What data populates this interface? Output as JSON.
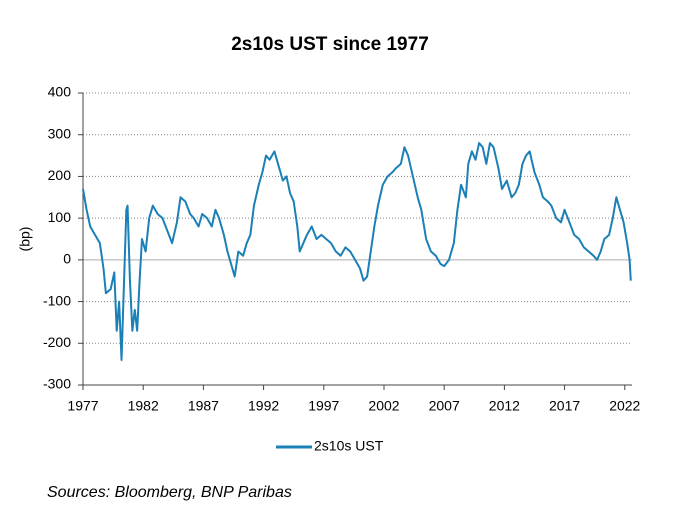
{
  "chart_data": {
    "type": "line",
    "title": "2s10s UST since 1977",
    "y_label": "(bp)",
    "source": "Sources: Bloomberg, BNP Paribas",
    "xlim": [
      1977,
      2022.6
    ],
    "xticks": [
      1977,
      1982,
      1987,
      1992,
      1997,
      2002,
      2007,
      2012,
      2017,
      2022
    ],
    "ylim": [
      -300,
      400
    ],
    "yticks": [
      -300,
      -200,
      -100,
      0,
      100,
      200,
      300,
      400
    ],
    "grid": true,
    "x": [
      1977.0,
      1977.3,
      1977.6,
      1978.0,
      1978.4,
      1978.7,
      1978.9,
      1979.3,
      1979.6,
      1979.8,
      1980.0,
      1980.2,
      1980.4,
      1980.6,
      1980.7,
      1980.9,
      1981.1,
      1981.3,
      1981.5,
      1981.7,
      1981.9,
      1982.2,
      1982.5,
      1982.8,
      1983.2,
      1983.6,
      1984.0,
      1984.4,
      1984.8,
      1985.1,
      1985.5,
      1985.9,
      1986.2,
      1986.6,
      1986.9,
      1987.3,
      1987.7,
      1988.0,
      1988.3,
      1988.7,
      1989.0,
      1989.3,
      1989.6,
      1989.9,
      1990.3,
      1990.6,
      1990.9,
      1991.2,
      1991.6,
      1991.9,
      1992.2,
      1992.5,
      1992.9,
      1993.2,
      1993.6,
      1993.9,
      1994.2,
      1994.5,
      1994.8,
      1995.0,
      1995.3,
      1995.6,
      1996.0,
      1996.4,
      1996.8,
      1997.2,
      1997.6,
      1998.0,
      1998.4,
      1998.8,
      1999.2,
      1999.6,
      2000.0,
      2000.3,
      2000.6,
      2000.9,
      2001.2,
      2001.5,
      2001.9,
      2002.3,
      2002.7,
      2003.0,
      2003.4,
      2003.7,
      2004.0,
      2004.4,
      2004.8,
      2005.1,
      2005.5,
      2005.9,
      2006.3,
      2006.7,
      2007.0,
      2007.4,
      2007.8,
      2008.1,
      2008.4,
      2008.8,
      2009.0,
      2009.3,
      2009.6,
      2009.9,
      2010.2,
      2010.5,
      2010.8,
      2011.1,
      2011.5,
      2011.8,
      2012.2,
      2012.6,
      2012.9,
      2013.2,
      2013.5,
      2013.8,
      2014.1,
      2014.5,
      2014.9,
      2015.2,
      2015.6,
      2015.9,
      2016.3,
      2016.7,
      2017.0,
      2017.4,
      2017.8,
      2018.2,
      2018.6,
      2019.0,
      2019.4,
      2019.7,
      2020.0,
      2020.3,
      2020.7,
      2021.0,
      2021.3,
      2021.6,
      2021.9,
      2022.2,
      2022.4,
      2022.5
    ],
    "series": [
      {
        "name": "2s10s UST",
        "color": "#1a80b6",
        "values": [
          170,
          120,
          80,
          60,
          40,
          -20,
          -80,
          -70,
          -30,
          -170,
          -100,
          -240,
          -60,
          120,
          130,
          -50,
          -170,
          -120,
          -170,
          -50,
          50,
          20,
          100,
          130,
          110,
          100,
          70,
          40,
          90,
          150,
          140,
          110,
          100,
          80,
          110,
          100,
          80,
          120,
          100,
          60,
          20,
          -10,
          -40,
          20,
          10,
          40,
          60,
          130,
          180,
          210,
          250,
          240,
          260,
          230,
          190,
          200,
          160,
          140,
          80,
          20,
          40,
          60,
          80,
          50,
          60,
          50,
          40,
          20,
          10,
          30,
          20,
          0,
          -20,
          -50,
          -40,
          20,
          80,
          130,
          180,
          200,
          210,
          220,
          230,
          270,
          250,
          200,
          150,
          120,
          50,
          20,
          10,
          -10,
          -15,
          0,
          40,
          120,
          180,
          150,
          230,
          260,
          240,
          280,
          270,
          230,
          280,
          270,
          220,
          170,
          190,
          150,
          160,
          180,
          230,
          250,
          260,
          210,
          180,
          150,
          140,
          130,
          100,
          90,
          120,
          90,
          60,
          50,
          30,
          20,
          10,
          0,
          20,
          50,
          60,
          100,
          150,
          120,
          90,
          40,
          0,
          -50
        ]
      }
    ]
  }
}
